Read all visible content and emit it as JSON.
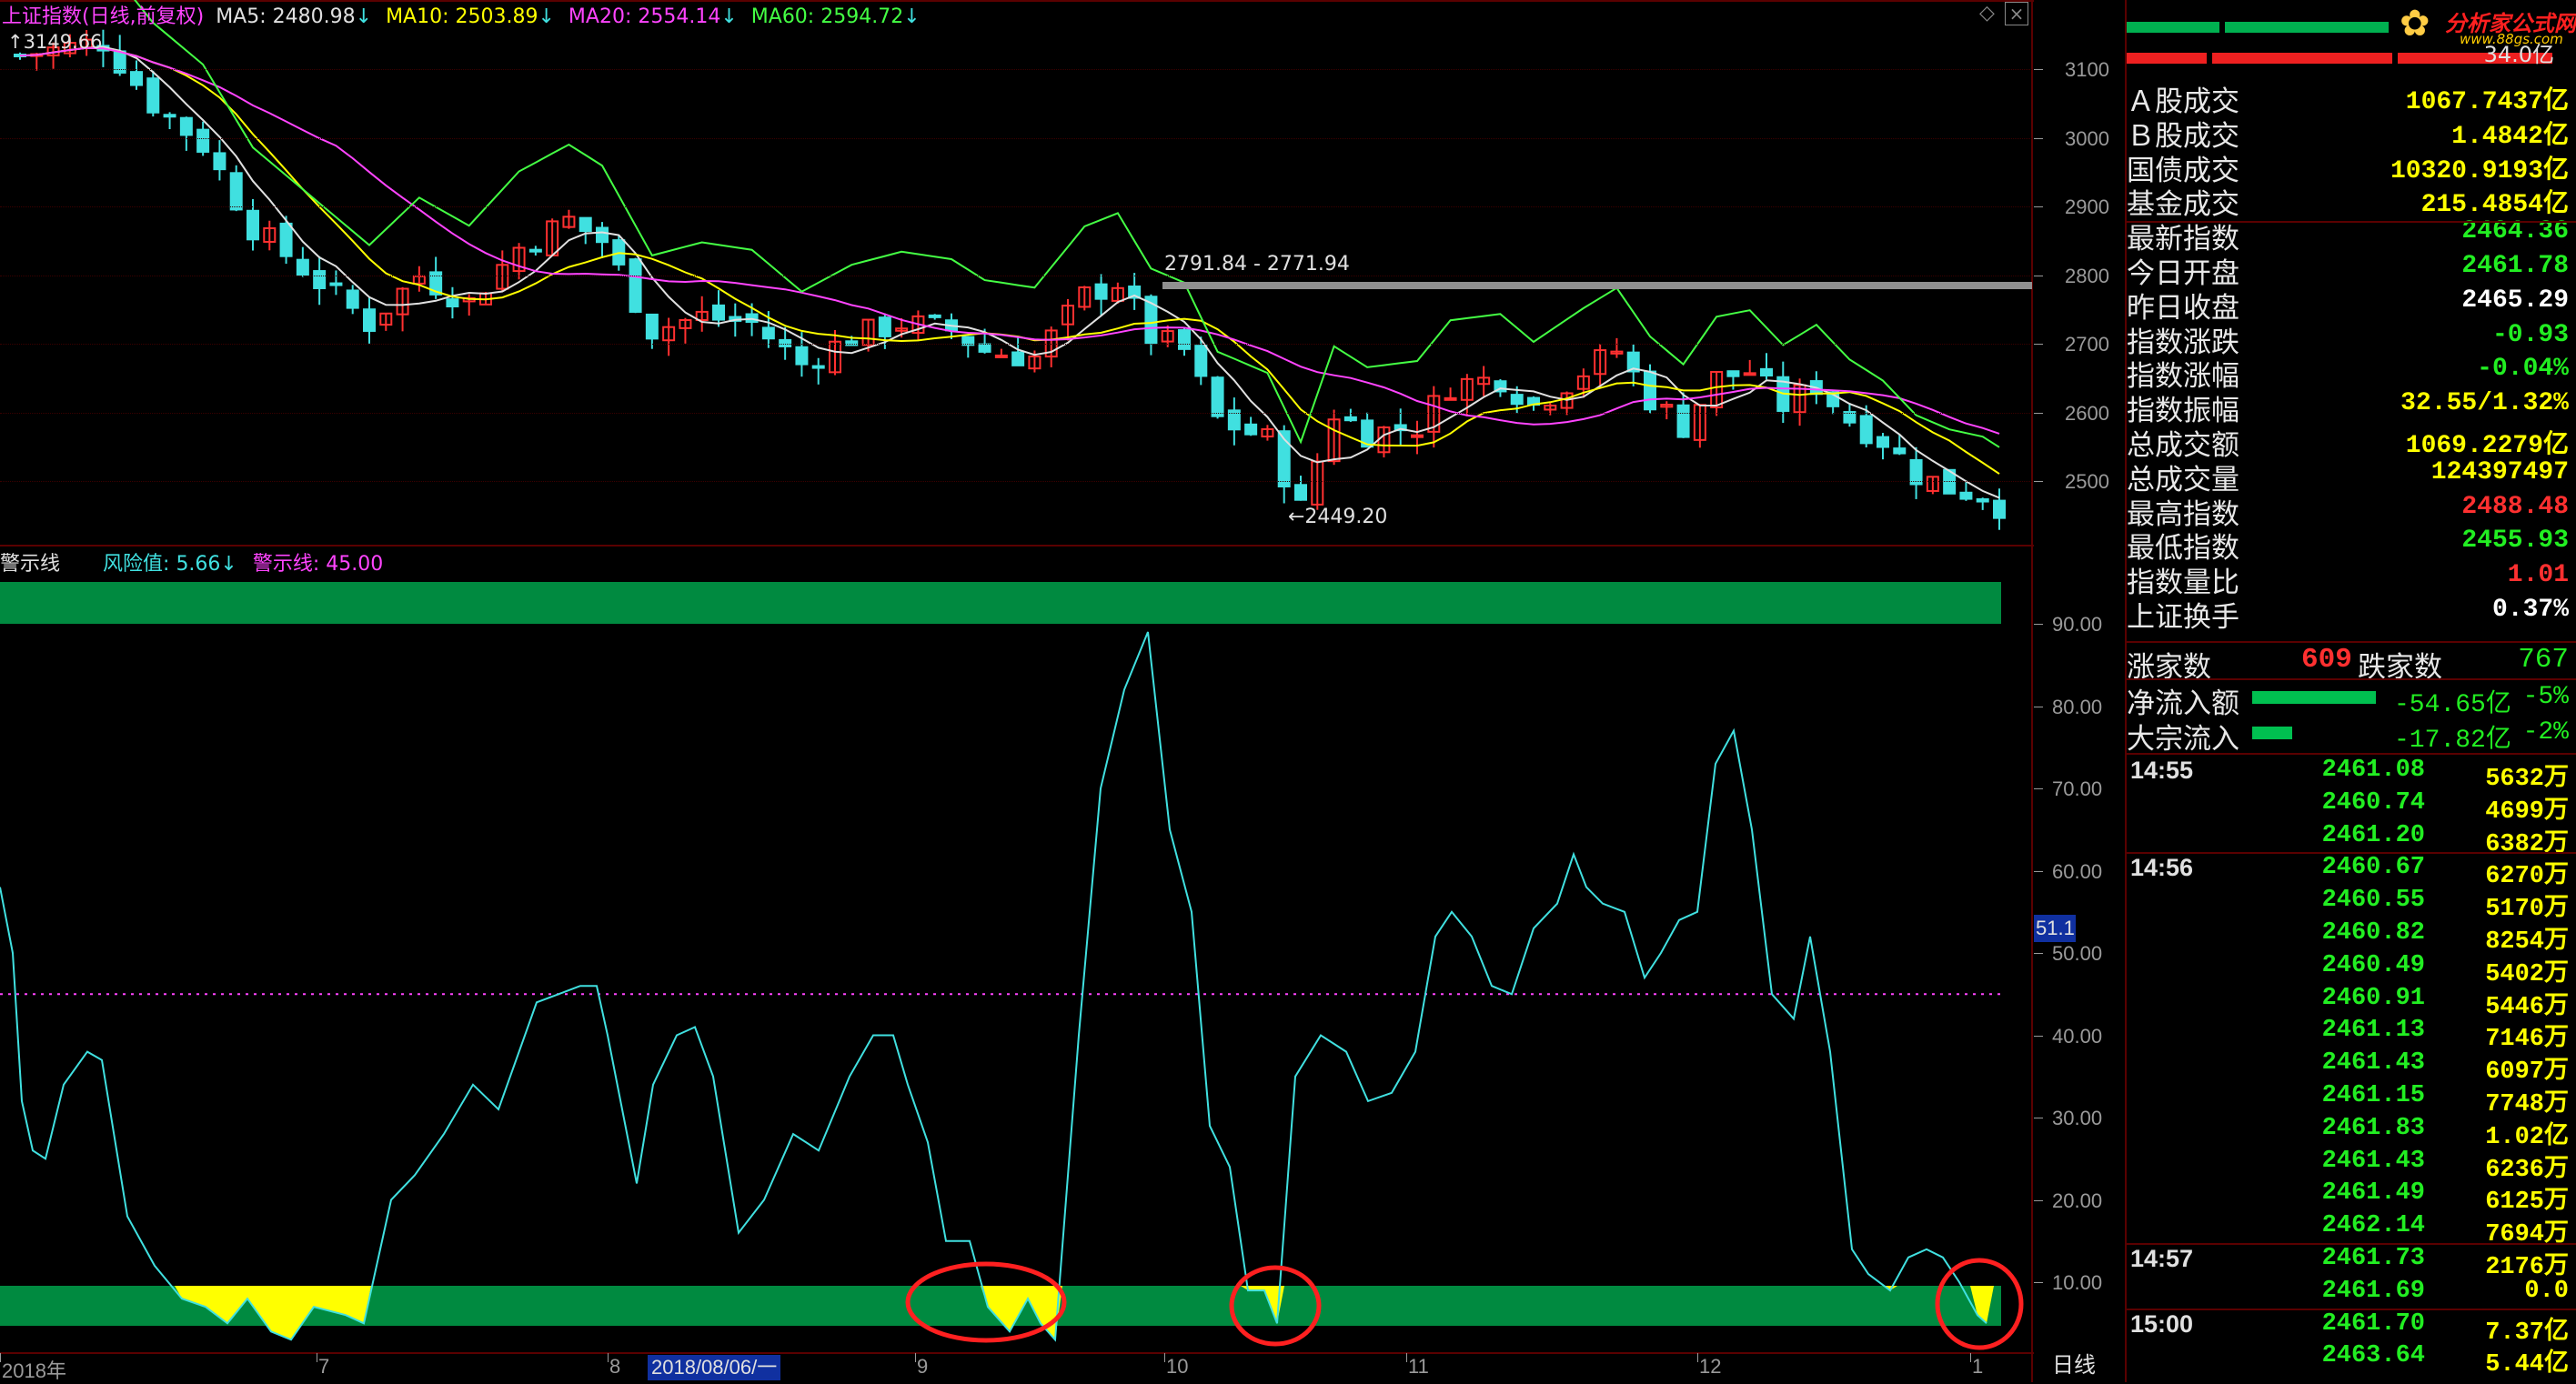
{
  "header": {
    "index_name": "上证指数",
    "mode": "(日线,前复权)",
    "ma5_label": "MA5:",
    "ma5_value": "2480.98",
    "ma10_label": "MA10:",
    "ma10_value": "2503.89",
    "ma20_label": "MA20:",
    "ma20_value": "2554.14",
    "ma60_label": "MA60:",
    "ma60_value": "2594.72",
    "arrow": "↓",
    "colors": {
      "ma5": "#e0e0e0",
      "ma10": "#ffff00",
      "ma20": "#ff44ff",
      "ma60": "#44ff44"
    }
  },
  "price_chart": {
    "start_label": "3149.66",
    "annotation_range": "2791.84 - 2771.94",
    "annotation_low": "←2449.20",
    "y_ticks": [
      "3100",
      "3000",
      "2900",
      "2800",
      "2700",
      "2600",
      "2500"
    ]
  },
  "indicator": {
    "name": "警示线",
    "risk_label": "风险值:",
    "risk_value": "5.66",
    "warn_label": "警示线:",
    "warn_value": "45.00",
    "arrow": "↓",
    "current_tag": "51.1",
    "y_ticks": [
      "90.00",
      "80.00",
      "70.00",
      "60.00",
      "50.00",
      "40.00",
      "30.00",
      "20.00",
      "10.00"
    ],
    "colors": {
      "line": "#40e0e0",
      "band": "#008a40",
      "warn": "#ff44ff",
      "fill": "#ffff00",
      "circle": "#ff2020"
    }
  },
  "x_axis": {
    "labels": [
      "2018年",
      "7",
      "8",
      "9",
      "10",
      "11",
      "12",
      "1"
    ],
    "cursor_date": "2018/08/06/一",
    "period": "日线"
  },
  "window_icons": [
    "restore-icon",
    "close-icon"
  ],
  "logo": {
    "text": "分析家公式网",
    "url_text": "www.88gs.com"
  },
  "side_panel": {
    "top_value": "34.0亿",
    "stats": [
      {
        "label": "Ａ股成交",
        "value": "1067.7437亿",
        "color": "#ffff00"
      },
      {
        "label": "Ｂ股成交",
        "value": "1.4842亿",
        "color": "#ffff00"
      },
      {
        "label": "国债成交",
        "value": "10320.9193亿",
        "color": "#ffff00"
      },
      {
        "label": "基金成交",
        "value": "215.4854亿",
        "color": "#ffff00"
      },
      {
        "label": "最新指数",
        "value": "2464.36",
        "color": "#22ee22"
      },
      {
        "label": "今日开盘",
        "value": "2461.78",
        "color": "#22ee22"
      },
      {
        "label": "昨日收盘",
        "value": "2465.29",
        "color": "#ffffff"
      },
      {
        "label": "指数涨跌",
        "value": "-0.93",
        "color": "#22ee22"
      },
      {
        "label": "指数涨幅",
        "value": "-0.04%",
        "color": "#22ee22"
      },
      {
        "label": "指数振幅",
        "value": "32.55/1.32%",
        "color": "#ffff00"
      },
      {
        "label": "总成交额",
        "value": "1069.2279亿",
        "color": "#ffff00"
      },
      {
        "label": "总成交量",
        "value": "124397497",
        "color": "#ffff00"
      },
      {
        "label": "最高指数",
        "value": "2488.48",
        "color": "#ff3030"
      },
      {
        "label": "最低指数",
        "value": "2455.93",
        "color": "#22ee22"
      },
      {
        "label": "指数量比",
        "value": "1.01",
        "color": "#ff3030"
      },
      {
        "label": "上证换手",
        "value": "0.37%",
        "color": "#ffffff"
      }
    ],
    "rise_label": "涨家数",
    "rise_value": "609",
    "fall_label": "跌家数",
    "fall_value": "767",
    "flow": [
      {
        "label": "净流入额",
        "value": "-54.65亿",
        "pct": "-5%"
      },
      {
        "label": "大宗流入",
        "value": "-17.82亿",
        "pct": "-2%"
      }
    ],
    "ticks": [
      {
        "time": "14:55",
        "price": "2461.08",
        "vol": "5632万"
      },
      {
        "time": "",
        "price": "2460.74",
        "vol": "4699万"
      },
      {
        "time": "",
        "price": "2461.20",
        "vol": "6382万"
      },
      {
        "time": "14:56",
        "price": "2460.67",
        "vol": "6270万"
      },
      {
        "time": "",
        "price": "2460.55",
        "vol": "5170万"
      },
      {
        "time": "",
        "price": "2460.82",
        "vol": "8254万"
      },
      {
        "time": "",
        "price": "2460.49",
        "vol": "5402万"
      },
      {
        "time": "",
        "price": "2460.91",
        "vol": "5446万"
      },
      {
        "time": "",
        "price": "2461.13",
        "vol": "7146万"
      },
      {
        "time": "",
        "price": "2461.43",
        "vol": "6097万"
      },
      {
        "time": "",
        "price": "2461.15",
        "vol": "7748万"
      },
      {
        "time": "",
        "price": "2461.83",
        "vol": "1.02亿"
      },
      {
        "time": "",
        "price": "2461.43",
        "vol": "6236万"
      },
      {
        "time": "",
        "price": "2461.49",
        "vol": "6125万"
      },
      {
        "time": "",
        "price": "2462.14",
        "vol": "7694万"
      },
      {
        "time": "14:57",
        "price": "2461.73",
        "vol": "2176万"
      },
      {
        "time": "",
        "price": "2461.69",
        "vol": "0.0"
      },
      {
        "time": "15:00",
        "price": "2461.70",
        "vol": "7.37亿"
      },
      {
        "time": "",
        "price": "2463.64",
        "vol": "5.44亿"
      }
    ]
  }
}
